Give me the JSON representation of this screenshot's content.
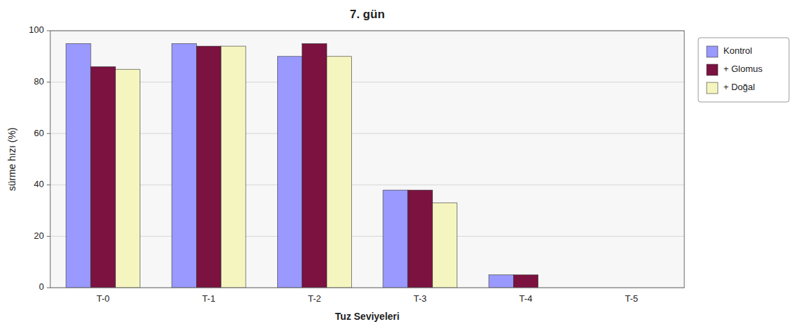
{
  "chart_data": {
    "type": "bar",
    "title": "7. gün",
    "xlabel": "Tuz Seviyeleri",
    "ylabel": "sürme hızı (%)",
    "categories": [
      "T-0",
      "T-1",
      "T-2",
      "T-3",
      "T-4",
      "T-5"
    ],
    "series": [
      {
        "name": "Kontrol",
        "color": "#9999FF",
        "values": [
          95,
          95,
          90,
          38,
          5,
          0
        ]
      },
      {
        "name": "+ Glomus",
        "color": "#7B1240",
        "values": [
          86,
          94,
          95,
          38,
          5,
          0
        ]
      },
      {
        "name": "+ Doğal",
        "color": "#F5F5C0",
        "values": [
          85,
          94,
          90,
          33,
          0,
          0
        ]
      }
    ],
    "ylim": [
      0,
      100
    ],
    "yticks": [
      0,
      20,
      40,
      60,
      80,
      100
    ],
    "grid": true,
    "legend": "right"
  }
}
